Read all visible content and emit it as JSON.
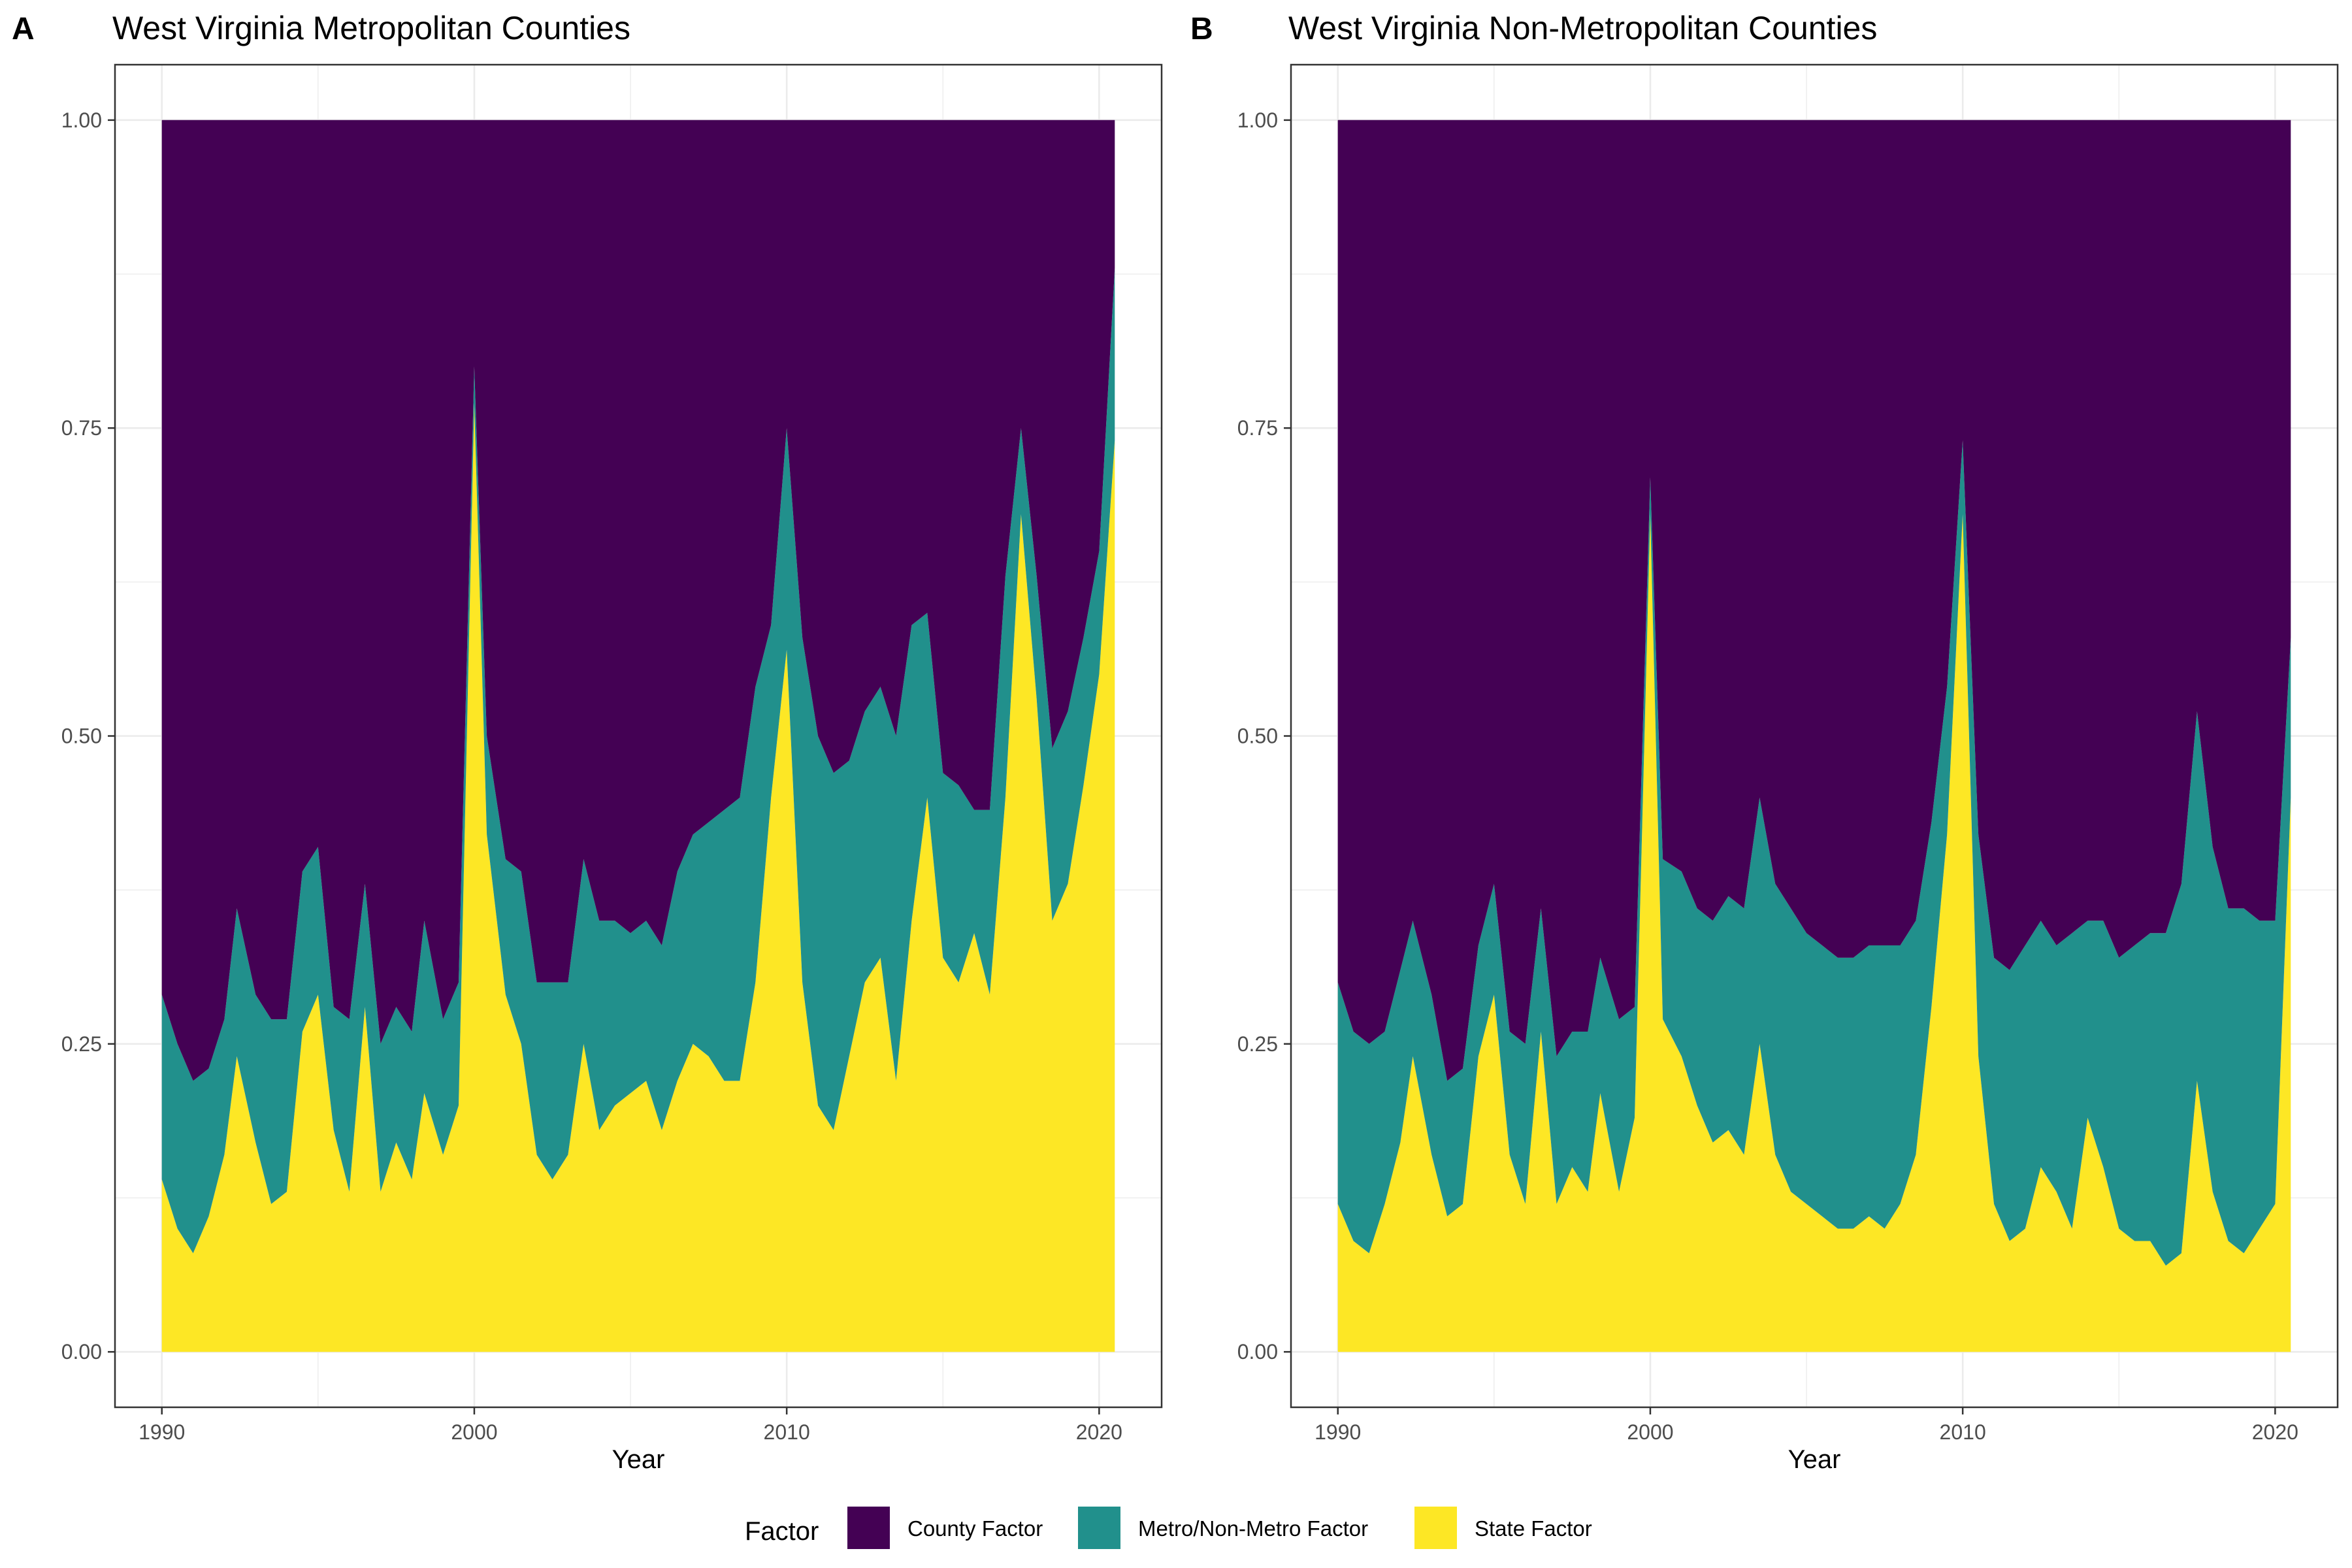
{
  "panels": [
    {
      "tag": "A",
      "title": "West Virginia Metropolitan Counties",
      "xlabel": "Year"
    },
    {
      "tag": "B",
      "title": "West Virginia Non-Metropolitan Counties",
      "xlabel": "Year"
    }
  ],
  "legend": {
    "title": "Factor",
    "items": [
      {
        "label": "County Factor",
        "color": "#440154"
      },
      {
        "label": "Metro/Non-Metro Factor",
        "color": "#21908C"
      },
      {
        "label": "State Factor",
        "color": "#FDE725"
      }
    ]
  },
  "chart_data": [
    {
      "type": "area",
      "stacked": true,
      "title": "West Virginia Metropolitan Counties",
      "xlabel": "Year",
      "ylabel": "",
      "xlim": [
        1988.5,
        2022.0
      ],
      "ylim": [
        -0.045,
        1.045
      ],
      "x_ticks": [
        1990,
        2000,
        2010,
        2020
      ],
      "y_ticks": [
        "0.00",
        "0.25",
        "0.50",
        "0.75",
        "1.00"
      ],
      "grid": true,
      "x": [
        1990.0,
        1990.5,
        1991.0,
        1991.5,
        1992.0,
        1992.4,
        1993.0,
        1993.5,
        1994.0,
        1994.5,
        1995.0,
        1995.5,
        1996.0,
        1996.5,
        1997.0,
        1997.5,
        1998.0,
        1998.4,
        1999.0,
        1999.5,
        2000.0,
        2000.4,
        2001.0,
        2001.5,
        2002.0,
        2002.5,
        2003.0,
        2003.5,
        2004.0,
        2004.5,
        2005.0,
        2005.5,
        2006.0,
        2006.5,
        2007.0,
        2007.5,
        2008.0,
        2008.5,
        2009.0,
        2009.5,
        2010.0,
        2010.5,
        2011.0,
        2011.5,
        2012.0,
        2012.5,
        2013.0,
        2013.5,
        2014.0,
        2014.5,
        2015.0,
        2015.5,
        2016.0,
        2016.5,
        2017.0,
        2017.5,
        2018.0,
        2018.5,
        2019.0,
        2019.5,
        2020.0,
        2020.5
      ],
      "series": [
        {
          "name": "State Factor",
          "values": [
            0.14,
            0.1,
            0.08,
            0.11,
            0.16,
            0.24,
            0.17,
            0.12,
            0.13,
            0.26,
            0.29,
            0.18,
            0.13,
            0.28,
            0.13,
            0.17,
            0.14,
            0.21,
            0.16,
            0.2,
            0.77,
            0.42,
            0.29,
            0.25,
            0.16,
            0.14,
            0.16,
            0.25,
            0.18,
            0.2,
            0.21,
            0.22,
            0.18,
            0.22,
            0.25,
            0.24,
            0.22,
            0.22,
            0.3,
            0.45,
            0.57,
            0.3,
            0.2,
            0.18,
            0.24,
            0.3,
            0.32,
            0.22,
            0.35,
            0.45,
            0.32,
            0.3,
            0.34,
            0.29,
            0.45,
            0.68,
            0.53,
            0.35,
            0.38,
            0.46,
            0.55,
            0.74
          ]
        },
        {
          "name": "Metro/Non-Metro Factor",
          "values": [
            0.15,
            0.15,
            0.14,
            0.12,
            0.11,
            0.12,
            0.12,
            0.15,
            0.14,
            0.13,
            0.12,
            0.1,
            0.14,
            0.1,
            0.12,
            0.11,
            0.12,
            0.14,
            0.11,
            0.1,
            0.03,
            0.08,
            0.11,
            0.14,
            0.14,
            0.16,
            0.14,
            0.15,
            0.17,
            0.15,
            0.13,
            0.13,
            0.15,
            0.17,
            0.17,
            0.19,
            0.22,
            0.23,
            0.24,
            0.14,
            0.18,
            0.28,
            0.3,
            0.29,
            0.24,
            0.22,
            0.22,
            0.28,
            0.24,
            0.15,
            0.15,
            0.16,
            0.1,
            0.15,
            0.18,
            0.07,
            0.1,
            0.14,
            0.14,
            0.12,
            0.1,
            0.14
          ]
        },
        {
          "name": "County Factor",
          "values": [
            0.71,
            0.75,
            0.78,
            0.77,
            0.73,
            0.64,
            0.71,
            0.73,
            0.73,
            0.61,
            0.59,
            0.72,
            0.73,
            0.62,
            0.75,
            0.72,
            0.74,
            0.65,
            0.73,
            0.7,
            0.2,
            0.5,
            0.6,
            0.61,
            0.7,
            0.7,
            0.7,
            0.6,
            0.65,
            0.65,
            0.66,
            0.65,
            0.67,
            0.61,
            0.58,
            0.57,
            0.56,
            0.55,
            0.46,
            0.41,
            0.25,
            0.42,
            0.5,
            0.53,
            0.52,
            0.48,
            0.46,
            0.5,
            0.41,
            0.4,
            0.53,
            0.54,
            0.56,
            0.56,
            0.37,
            0.25,
            0.37,
            0.51,
            0.48,
            0.42,
            0.35,
            0.12
          ]
        }
      ]
    },
    {
      "type": "area",
      "stacked": true,
      "title": "West Virginia Non-Metropolitan Counties",
      "xlabel": "Year",
      "ylabel": "",
      "xlim": [
        1988.5,
        2022.0
      ],
      "ylim": [
        -0.045,
        1.045
      ],
      "x_ticks": [
        1990,
        2000,
        2010,
        2020
      ],
      "y_ticks": [
        "0.00",
        "0.25",
        "0.50",
        "0.75",
        "1.00"
      ],
      "grid": true,
      "x": [
        1990.0,
        1990.5,
        1991.0,
        1991.5,
        1992.0,
        1992.4,
        1993.0,
        1993.5,
        1994.0,
        1994.5,
        1995.0,
        1995.5,
        1996.0,
        1996.5,
        1997.0,
        1997.5,
        1998.0,
        1998.4,
        1999.0,
        1999.5,
        2000.0,
        2000.4,
        2001.0,
        2001.5,
        2002.0,
        2002.5,
        2003.0,
        2003.5,
        2004.0,
        2004.5,
        2005.0,
        2005.5,
        2006.0,
        2006.5,
        2007.0,
        2007.5,
        2008.0,
        2008.5,
        2009.0,
        2009.5,
        2010.0,
        2010.5,
        2011.0,
        2011.5,
        2012.0,
        2012.5,
        2013.0,
        2013.5,
        2014.0,
        2014.5,
        2015.0,
        2015.5,
        2016.0,
        2016.5,
        2017.0,
        2017.5,
        2018.0,
        2018.5,
        2019.0,
        2019.5,
        2020.0,
        2020.5
      ],
      "series": [
        {
          "name": "State Factor",
          "values": [
            0.12,
            0.09,
            0.08,
            0.12,
            0.17,
            0.24,
            0.16,
            0.11,
            0.12,
            0.24,
            0.29,
            0.16,
            0.12,
            0.26,
            0.12,
            0.15,
            0.13,
            0.21,
            0.13,
            0.19,
            0.68,
            0.27,
            0.24,
            0.2,
            0.17,
            0.18,
            0.16,
            0.25,
            0.16,
            0.13,
            0.12,
            0.11,
            0.1,
            0.1,
            0.11,
            0.1,
            0.12,
            0.16,
            0.28,
            0.42,
            0.68,
            0.24,
            0.12,
            0.09,
            0.1,
            0.15,
            0.13,
            0.1,
            0.19,
            0.15,
            0.1,
            0.09,
            0.09,
            0.07,
            0.08,
            0.22,
            0.13,
            0.09,
            0.08,
            0.1,
            0.12,
            0.45
          ]
        },
        {
          "name": "Metro/Non-Metro Factor",
          "values": [
            0.18,
            0.17,
            0.17,
            0.14,
            0.14,
            0.11,
            0.13,
            0.11,
            0.11,
            0.09,
            0.09,
            0.1,
            0.13,
            0.1,
            0.12,
            0.11,
            0.13,
            0.11,
            0.14,
            0.09,
            0.03,
            0.13,
            0.15,
            0.16,
            0.18,
            0.19,
            0.2,
            0.2,
            0.22,
            0.23,
            0.22,
            0.22,
            0.22,
            0.22,
            0.22,
            0.23,
            0.21,
            0.19,
            0.15,
            0.12,
            0.06,
            0.18,
            0.2,
            0.22,
            0.23,
            0.2,
            0.2,
            0.24,
            0.16,
            0.2,
            0.22,
            0.24,
            0.25,
            0.27,
            0.3,
            0.3,
            0.28,
            0.27,
            0.28,
            0.25,
            0.23,
            0.13
          ]
        },
        {
          "name": "County Factor",
          "values": [
            0.7,
            0.74,
            0.75,
            0.74,
            0.69,
            0.65,
            0.71,
            0.78,
            0.77,
            0.67,
            0.62,
            0.74,
            0.75,
            0.64,
            0.76,
            0.74,
            0.74,
            0.68,
            0.73,
            0.72,
            0.29,
            0.6,
            0.61,
            0.64,
            0.65,
            0.63,
            0.64,
            0.55,
            0.62,
            0.64,
            0.66,
            0.67,
            0.68,
            0.68,
            0.67,
            0.67,
            0.67,
            0.65,
            0.57,
            0.46,
            0.26,
            0.58,
            0.68,
            0.69,
            0.67,
            0.65,
            0.67,
            0.66,
            0.65,
            0.65,
            0.68,
            0.67,
            0.66,
            0.66,
            0.62,
            0.48,
            0.59,
            0.64,
            0.64,
            0.65,
            0.65,
            0.42
          ]
        }
      ]
    }
  ]
}
